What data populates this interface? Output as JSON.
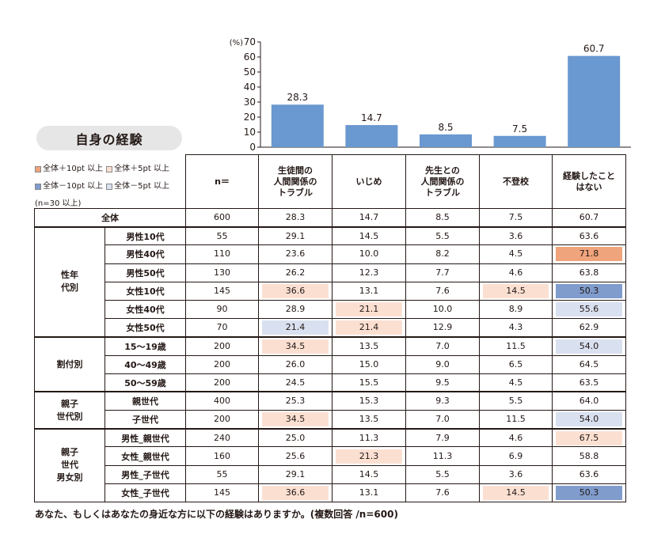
{
  "title": "自身の経験",
  "legend": {
    "items": [
      {
        "label": "全体＋10pt 以上",
        "color": "#f0a47c"
      },
      {
        "label": "全体＋5pt 以上",
        "color": "#fbe0d2"
      },
      {
        "label": "全体－10pt 以上",
        "color": "#7f9ccc"
      },
      {
        "label": "全体－5pt 以上",
        "color": "#d9e0ef"
      }
    ],
    "note": "(n=30 以上)"
  },
  "chart_data": {
    "type": "bar",
    "categories": [
      "生徒間の人間関係のトラブル",
      "いじめ",
      "先生との人間関係のトラブル",
      "不登校",
      "経験したことはない"
    ],
    "values": [
      28.3,
      14.7,
      8.5,
      7.5,
      60.7
    ],
    "value_labels": [
      "28.3",
      "14.7",
      "8.5",
      "7.5",
      "60.7"
    ],
    "ylim": [
      0,
      70
    ],
    "yticks": [
      "0",
      "10",
      "20",
      "30",
      "40",
      "50",
      "60",
      "70"
    ],
    "unit_label": "(%)",
    "bar_color": "#6a98d0"
  },
  "table": {
    "headers": [
      "n＝",
      "生徒間の\n人間関係の\nトラブル",
      "いじめ",
      "先生との\n人間関係の\nトラブル",
      "不登校",
      "経験したこと\nはない"
    ],
    "total": {
      "label": "全体",
      "n": "600",
      "values": [
        "28.3",
        "14.7",
        "8.5",
        "7.5",
        "60.7"
      ]
    },
    "groups": [
      {
        "label": "性年\n代別",
        "rows": [
          {
            "label": "男性10代",
            "n": "55",
            "values": [
              "29.1",
              "14.5",
              "5.5",
              "3.6",
              "63.6"
            ],
            "hl": [
              "",
              "",
              "",
              "",
              ""
            ]
          },
          {
            "label": "男性40代",
            "n": "110",
            "values": [
              "23.6",
              "10.0",
              "8.2",
              "4.5",
              "71.8"
            ],
            "hl": [
              "",
              "",
              "",
              "",
              "p10"
            ]
          },
          {
            "label": "男性50代",
            "n": "130",
            "values": [
              "26.2",
              "12.3",
              "7.7",
              "4.6",
              "63.8"
            ],
            "hl": [
              "",
              "",
              "",
              "",
              ""
            ]
          },
          {
            "label": "女性10代",
            "n": "145",
            "values": [
              "36.6",
              "13.1",
              "7.6",
              "14.5",
              "50.3"
            ],
            "hl": [
              "p5",
              "",
              "",
              "p5",
              "m10"
            ]
          },
          {
            "label": "女性40代",
            "n": "90",
            "values": [
              "28.9",
              "21.1",
              "10.0",
              "8.9",
              "55.6"
            ],
            "hl": [
              "",
              "p5",
              "",
              "",
              "m5"
            ]
          },
          {
            "label": "女性50代",
            "n": "70",
            "values": [
              "21.4",
              "21.4",
              "12.9",
              "4.3",
              "62.9"
            ],
            "hl": [
              "m5",
              "p5",
              "",
              "",
              ""
            ]
          }
        ]
      },
      {
        "label": "割付別",
        "rows": [
          {
            "label": "15～19歳",
            "n": "200",
            "values": [
              "34.5",
              "13.5",
              "7.0",
              "11.5",
              "54.0"
            ],
            "hl": [
              "p5",
              "",
              "",
              "",
              "m5"
            ]
          },
          {
            "label": "40～49歳",
            "n": "200",
            "values": [
              "26.0",
              "15.0",
              "9.0",
              "6.5",
              "64.5"
            ],
            "hl": [
              "",
              "",
              "",
              "",
              ""
            ]
          },
          {
            "label": "50～59歳",
            "n": "200",
            "values": [
              "24.5",
              "15.5",
              "9.5",
              "4.5",
              "63.5"
            ],
            "hl": [
              "",
              "",
              "",
              "",
              ""
            ]
          }
        ]
      },
      {
        "label": "親子\n世代別",
        "rows": [
          {
            "label": "親世代",
            "n": "400",
            "values": [
              "25.3",
              "15.3",
              "9.3",
              "5.5",
              "64.0"
            ],
            "hl": [
              "",
              "",
              "",
              "",
              ""
            ]
          },
          {
            "label": "子世代",
            "n": "200",
            "values": [
              "34.5",
              "13.5",
              "7.0",
              "11.5",
              "54.0"
            ],
            "hl": [
              "p5",
              "",
              "",
              "",
              "m5"
            ]
          }
        ]
      },
      {
        "label": "親子\n世代\n男女別",
        "rows": [
          {
            "label": "男性_親世代",
            "n": "240",
            "values": [
              "25.0",
              "11.3",
              "7.9",
              "4.6",
              "67.5"
            ],
            "hl": [
              "",
              "",
              "",
              "",
              "p5"
            ]
          },
          {
            "label": "女性_親世代",
            "n": "160",
            "values": [
              "25.6",
              "21.3",
              "11.3",
              "6.9",
              "58.8"
            ],
            "hl": [
              "",
              "p5",
              "",
              "",
              ""
            ]
          },
          {
            "label": "男性_子世代",
            "n": "55",
            "values": [
              "29.1",
              "14.5",
              "5.5",
              "3.6",
              "63.6"
            ],
            "hl": [
              "",
              "",
              "",
              "",
              ""
            ]
          },
          {
            "label": "女性_子世代",
            "n": "145",
            "values": [
              "36.6",
              "13.1",
              "7.6",
              "14.5",
              "50.3"
            ],
            "hl": [
              "p5",
              "",
              "",
              "p5",
              "m10"
            ]
          }
        ]
      }
    ]
  },
  "footer": "あなた、もしくはあなたの身近な方に以下の経験はありますか。(複数回答 /n=600)"
}
